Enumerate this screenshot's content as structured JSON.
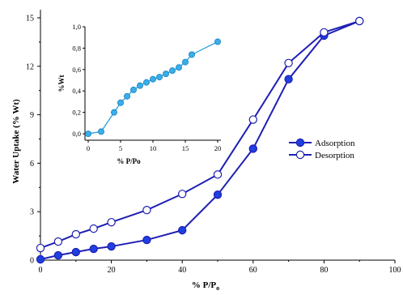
{
  "colors": {
    "main_series": "#1f1fb4",
    "adsorption_fill": "#1f3fe0",
    "inset_series": "#2a9fd8",
    "inset_marker": "#39aee8"
  },
  "chart_data": [
    {
      "type": "line",
      "xlabel_main": "% P/P",
      "xlabel_sub": "o",
      "ylabel": "Water Uptake (% Wt)",
      "xlim": [
        0,
        100
      ],
      "ylim": [
        0,
        15.5
      ],
      "xticks": [
        0,
        20,
        40,
        60,
        80,
        100
      ],
      "xtick_labels": [
        "0",
        "20",
        "40",
        "60",
        "80",
        "100"
      ],
      "yticks": [
        0,
        3,
        6,
        9,
        12,
        15
      ],
      "ytick_labels": [
        "0",
        "3",
        "6",
        "9",
        "12",
        "15"
      ],
      "legend_position": "right-middle",
      "series": [
        {
          "name": "Adsorption",
          "marker": "filled-circle",
          "x": [
            0,
            5,
            10,
            15,
            20,
            30,
            40,
            50,
            60,
            70,
            80,
            90
          ],
          "y": [
            0.05,
            0.3,
            0.5,
            0.7,
            0.85,
            1.25,
            1.85,
            4.05,
            6.9,
            11.2,
            13.9,
            14.8
          ]
        },
        {
          "name": "Desorption",
          "marker": "open-circle",
          "x": [
            0,
            5,
            10,
            15,
            20,
            30,
            40,
            50,
            60,
            70,
            80,
            90
          ],
          "y": [
            0.75,
            1.15,
            1.6,
            1.95,
            2.35,
            3.1,
            4.1,
            5.3,
            8.7,
            12.2,
            14.1,
            14.8
          ]
        }
      ]
    },
    {
      "type": "line",
      "xlabel": "% P/Po",
      "ylabel": "%Wt",
      "xlim": [
        -0.5,
        20.5
      ],
      "ylim": [
        -0.06,
        1.0
      ],
      "xticks": [
        0,
        5,
        10,
        15,
        20
      ],
      "xtick_labels": [
        "0",
        "5",
        "10",
        "15",
        "20"
      ],
      "yticks": [
        0.0,
        0.2,
        0.4,
        0.6,
        0.8,
        1.0
      ],
      "ytick_labels": [
        "0,0",
        "0,2",
        "0,4",
        "0,6",
        "0,8",
        "1,0"
      ],
      "series": [
        {
          "marker": "filled-circle",
          "x": [
            0,
            2,
            4,
            5,
            6,
            7,
            8,
            9,
            10,
            11,
            12,
            13,
            14,
            15,
            16,
            20
          ],
          "y": [
            0.0,
            0.02,
            0.2,
            0.29,
            0.35,
            0.41,
            0.45,
            0.48,
            0.51,
            0.53,
            0.56,
            0.59,
            0.62,
            0.67,
            0.74,
            0.86
          ]
        }
      ]
    }
  ]
}
